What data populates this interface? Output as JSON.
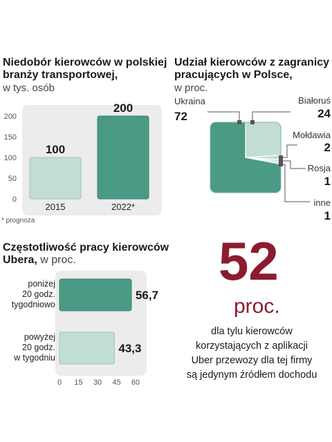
{
  "chart1": {
    "title_line1": "Niedobór kierowców w polskiej",
    "title_line2": "branży transportowej,",
    "unit": "w tys. osób",
    "footnote": "* prognoza",
    "chart_data": {
      "type": "bar",
      "categories": [
        "2015",
        "2022*"
      ],
      "values": [
        100,
        200
      ],
      "value_labels": [
        "100",
        "200"
      ],
      "yticks": [
        0,
        50,
        100,
        150,
        200
      ],
      "ylim": [
        0,
        200
      ],
      "colors": [
        "#c2ddd3",
        "#4b9a85"
      ]
    }
  },
  "chart2": {
    "title_line1": "Udział kierowców z zagranicy",
    "title_line2": "pracujących w Polsce,",
    "unit": "w proc.",
    "chart_data": {
      "type": "pie",
      "slices": [
        {
          "label": "Ukraina",
          "value": 72,
          "color": "#4b9a85"
        },
        {
          "label": "Białoruś",
          "value": 24,
          "color": "#c2ddd3"
        },
        {
          "label": "Mołdawia",
          "value": 2,
          "color": "#c2ddd3"
        },
        {
          "label": "Rosja",
          "value": 1,
          "color": "#c2ddd3"
        },
        {
          "label": "inne",
          "value": 1,
          "color": "#c2ddd3"
        }
      ]
    }
  },
  "chart3": {
    "title_bold": "Częstotliwość pracy kierowców",
    "title_bold2": "Ubera,",
    "title_unit": " w proc.",
    "chart_data": {
      "type": "bar",
      "orientation": "horizontal",
      "categories": [
        [
          "poniżej",
          "20 godz.",
          "tygodniowo"
        ],
        [
          "powyżej",
          "20 godz.",
          "w tygodniu"
        ]
      ],
      "values": [
        56.7,
        43.3
      ],
      "value_labels": [
        "56,7",
        "43,3"
      ],
      "xticks": [
        0,
        15,
        30,
        45,
        60
      ],
      "xlim": [
        0,
        60
      ],
      "colors": [
        "#4b9a85",
        "#c2ddd3"
      ]
    }
  },
  "highlight": {
    "number": "52",
    "unit": "proc.",
    "lines": [
      "dla tylu kierowców",
      "korzystających z aplikacji",
      "Uber przewozy dla tej firmy",
      "są jedynym źródłem dochodu"
    ]
  }
}
